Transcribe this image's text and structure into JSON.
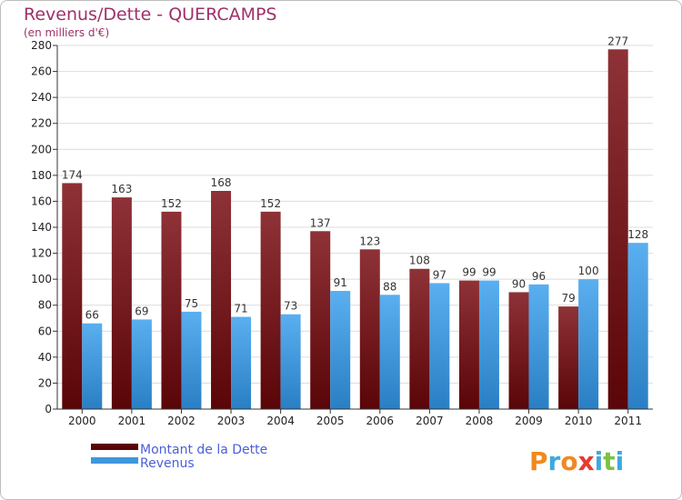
{
  "chart_data": {
    "type": "bar",
    "title": "Revenus/Dette - QUERCAMPS",
    "subtitle": "(en milliers d'€)",
    "categories": [
      "2000",
      "2001",
      "2002",
      "2003",
      "2004",
      "2005",
      "2006",
      "2007",
      "2008",
      "2009",
      "2010",
      "2011"
    ],
    "series": [
      {
        "name": "Montant de la Dette",
        "color": "#7a1a1f",
        "values": [
          174,
          163,
          152,
          168,
          152,
          137,
          123,
          108,
          99,
          90,
          79,
          277
        ]
      },
      {
        "name": "Revenus",
        "color": "#3f97dc",
        "values": [
          66,
          69,
          75,
          71,
          73,
          91,
          88,
          97,
          99,
          96,
          100,
          128
        ]
      }
    ],
    "ylim": [
      0,
      280
    ],
    "yticks": [
      0,
      20,
      40,
      60,
      80,
      100,
      120,
      140,
      160,
      180,
      200,
      220,
      240,
      260,
      280
    ],
    "grid": true,
    "legend": "bottom-left"
  },
  "brand": {
    "letters": [
      "P",
      "r",
      "o",
      "x",
      "i",
      "t",
      "i"
    ],
    "colors": [
      "#f08a1e",
      "#3fa8df",
      "#f08a1e",
      "#e83a2e",
      "#3fa8df",
      "#7cc242",
      "#3fa8df"
    ]
  }
}
